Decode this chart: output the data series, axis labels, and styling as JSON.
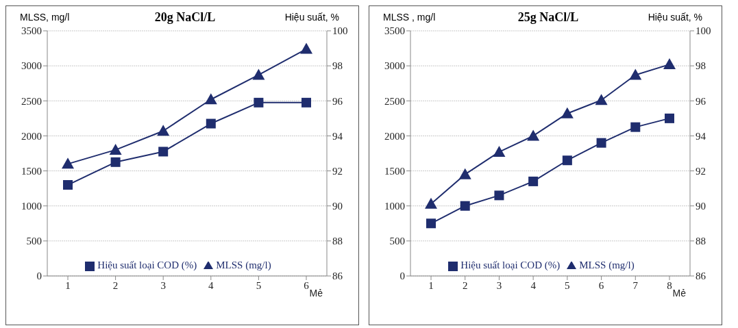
{
  "chart_data": [
    {
      "type": "line",
      "title": "20g NaCl/L",
      "ylabel": "MLSS, mg/l",
      "y2label": "Hiệu suất, %",
      "xlabel": "Mẻ",
      "categories": [
        "1",
        "2",
        "3",
        "4",
        "5",
        "6"
      ],
      "series": [
        {
          "name": "MLSS (mg/l)",
          "color": "#1f2d6e",
          "marker": "triangle",
          "values": [
            1600,
            1800,
            2070,
            2520,
            2870,
            3240
          ]
        },
        {
          "name": "Hiệu suất loại COD (%)",
          "color": "#1f2d6e",
          "marker": "square",
          "axis": "y2",
          "values": [
            91.2,
            92.5,
            93.1,
            94.7,
            95.9,
            95.9
          ]
        }
      ],
      "ylim": [
        0,
        3500
      ],
      "yticks": [
        0,
        500,
        1000,
        1500,
        2000,
        2500,
        3000,
        3500
      ],
      "y2lim": [
        86,
        100
      ],
      "y2ticks": [
        86,
        88,
        90,
        92,
        94,
        96,
        98,
        100
      ],
      "grid": "y",
      "legend": "bottom"
    },
    {
      "type": "line",
      "title": "25g NaCl/L",
      "ylabel": "MLSS , mg/l",
      "y2label": "Hiệu suất, %",
      "xlabel": "Mẻ",
      "categories": [
        "1",
        "2",
        "3",
        "4",
        "5",
        "6",
        "7",
        "8"
      ],
      "series": [
        {
          "name": "MLSS (mg/l)",
          "color": "#1f2d6e",
          "marker": "triangle",
          "values": [
            1030,
            1450,
            1770,
            2000,
            2320,
            2510,
            2870,
            3020
          ]
        },
        {
          "name": "Hiệu suất loại COD (%)",
          "color": "#1f2d6e",
          "marker": "square",
          "axis": "y2",
          "values": [
            89.0,
            90.0,
            90.6,
            91.4,
            92.6,
            93.6,
            94.5,
            95.0
          ]
        }
      ],
      "ylim": [
        0,
        3500
      ],
      "yticks": [
        0,
        500,
        1000,
        1500,
        2000,
        2500,
        3000,
        3500
      ],
      "y2lim": [
        86,
        100
      ],
      "y2ticks": [
        86,
        88,
        90,
        92,
        94,
        96,
        98,
        100
      ],
      "grid": "y",
      "legend": "bottom"
    }
  ]
}
